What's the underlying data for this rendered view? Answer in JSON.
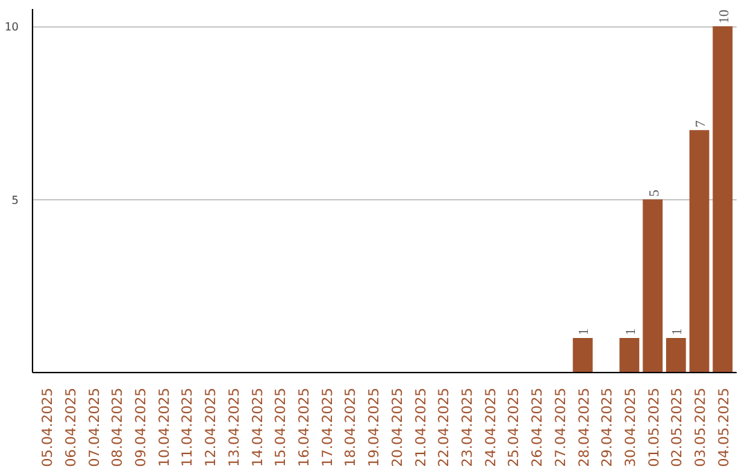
{
  "chart_data": {
    "type": "bar",
    "categories": [
      "05.04.2025",
      "06.04.2025",
      "07.04.2025",
      "08.04.2025",
      "09.04.2025",
      "10.04.2025",
      "11.04.2025",
      "12.04.2025",
      "13.04.2025",
      "14.04.2025",
      "15.04.2025",
      "16.04.2025",
      "17.04.2025",
      "18.04.2025",
      "19.04.2025",
      "20.04.2025",
      "21.04.2025",
      "22.04.2025",
      "23.04.2025",
      "24.04.2025",
      "25.04.2025",
      "26.04.2025",
      "27.04.2025",
      "28.04.2025",
      "29.04.2025",
      "30.04.2025",
      "01.05.2025",
      "02.05.2025",
      "03.05.2025",
      "04.05.2025"
    ],
    "values": [
      0,
      0,
      0,
      0,
      0,
      0,
      0,
      0,
      0,
      0,
      0,
      0,
      0,
      0,
      0,
      0,
      0,
      0,
      0,
      0,
      0,
      0,
      0,
      1,
      0,
      1,
      5,
      1,
      7,
      10
    ],
    "value_labels": [
      null,
      null,
      null,
      null,
      null,
      null,
      null,
      null,
      null,
      null,
      null,
      null,
      null,
      null,
      null,
      null,
      null,
      null,
      null,
      null,
      null,
      null,
      null,
      "1",
      null,
      "1",
      "5",
      "1",
      "7",
      "10"
    ],
    "color": "#a0522d",
    "ylim": [
      0,
      10.5
    ],
    "yticks": [
      5,
      10
    ],
    "grid": "y"
  }
}
